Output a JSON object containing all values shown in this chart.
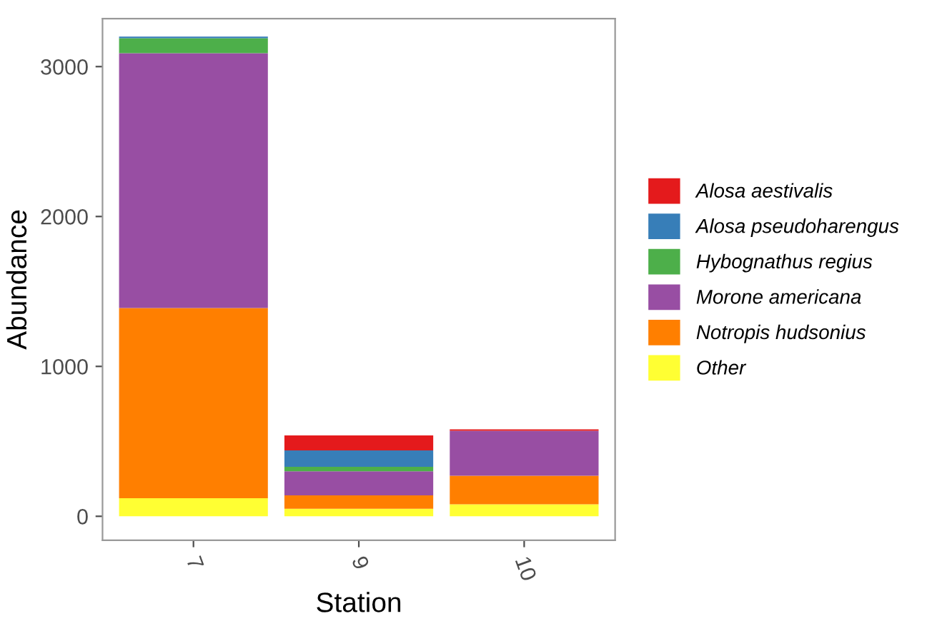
{
  "chart_data": {
    "type": "bar",
    "stacked": true,
    "xlabel": "Station",
    "ylabel": "Abundance",
    "categories": [
      "7",
      "9",
      "10"
    ],
    "series": [
      {
        "name": "Other",
        "color": "#ffff33",
        "values": [
          120,
          50,
          80
        ]
      },
      {
        "name": "Notropis hudsonius",
        "color": "#ff7f00",
        "values": [
          1270,
          90,
          190
        ]
      },
      {
        "name": "Morone americana",
        "color": "#984ea3",
        "values": [
          1700,
          160,
          300
        ]
      },
      {
        "name": "Hybognathus regius",
        "color": "#4daf4a",
        "values": [
          100,
          30,
          0
        ]
      },
      {
        "name": "Alosa pseudoharengus",
        "color": "#377eb8",
        "values": [
          10,
          110,
          0
        ]
      },
      {
        "name": "Alosa aestivalis",
        "color": "#e41a1c",
        "values": [
          0,
          100,
          10
        ]
      }
    ],
    "ylim": [
      -160,
      3320
    ],
    "yticks": [
      0,
      1000,
      2000,
      3000
    ],
    "grid": false,
    "legend": "right"
  }
}
